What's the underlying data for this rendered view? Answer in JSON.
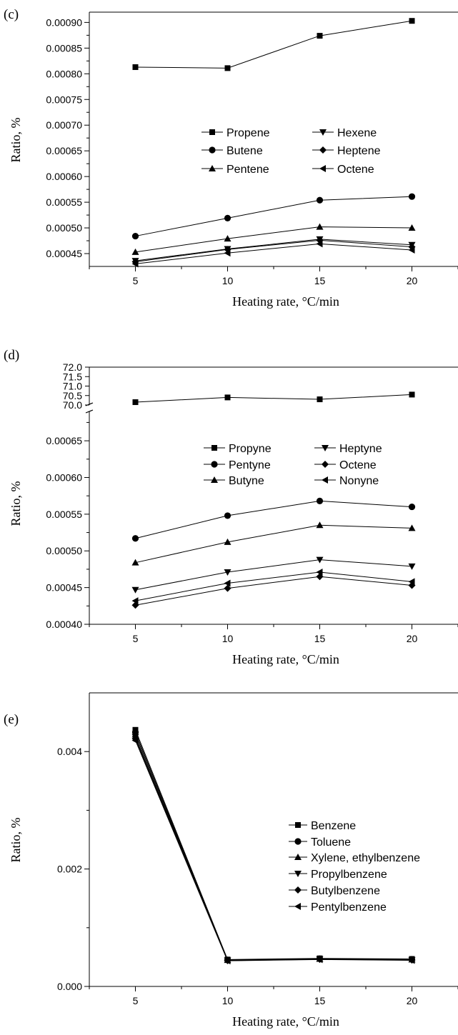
{
  "figure": {
    "panels": [
      "(c)",
      "(d)",
      "(e)"
    ]
  },
  "chart_data": [
    {
      "panel": "(c)",
      "type": "line",
      "xlabel": "Heating rate, °C/min",
      "ylabel": "Ratio, %",
      "x": [
        5,
        10,
        15,
        20
      ],
      "xticks": [
        "5",
        "10",
        "15",
        "20"
      ],
      "xlim": [
        2.5,
        22.5
      ],
      "ylim": [
        0.000425,
        0.00092
      ],
      "yticks": [
        "0.00045",
        "0.00050",
        "0.00055",
        "0.00060",
        "0.00065",
        "0.00070",
        "0.00075",
        "0.00080",
        "0.00085",
        "0.00090"
      ],
      "ytick_values": [
        0.00045,
        0.0005,
        0.00055,
        0.0006,
        0.00065,
        0.0007,
        0.00075,
        0.0008,
        0.00085,
        0.0009
      ],
      "legend_columns": 2,
      "series": [
        {
          "name": "Propene",
          "marker": "square",
          "values": [
            0.000813,
            0.000811,
            0.000874,
            0.000903
          ]
        },
        {
          "name": "Butene",
          "marker": "circle",
          "values": [
            0.000484,
            0.000519,
            0.000554,
            0.000561
          ]
        },
        {
          "name": "Pentene",
          "marker": "triangle-up",
          "values": [
            0.000453,
            0.000479,
            0.000502,
            0.0005
          ]
        },
        {
          "name": "Hexene",
          "marker": "triangle-down",
          "values": [
            0.000436,
            0.000459,
            0.000478,
            0.000467
          ]
        },
        {
          "name": "Heptene",
          "marker": "diamond",
          "values": [
            0.000434,
            0.000458,
            0.000476,
            0.000463
          ]
        },
        {
          "name": "Octene",
          "marker": "triangle-left",
          "values": [
            0.00043,
            0.000451,
            0.000469,
            0.000457
          ]
        }
      ]
    },
    {
      "panel": "(d)",
      "type": "line",
      "xlabel": "Heating rate, °C/min",
      "ylabel": "Ratio, %",
      "x": [
        5,
        10,
        15,
        20
      ],
      "xticks": [
        "5",
        "10",
        "15",
        "20"
      ],
      "xlim": [
        2.5,
        22.5
      ],
      "broken_axis": true,
      "upper_ylim": [
        70.0,
        72.0
      ],
      "upper_yticks": [
        "72.0",
        "71.5",
        "71.0",
        "70.5",
        "70.0"
      ],
      "upper_ytick_values": [
        72.0,
        71.5,
        71.0,
        70.5,
        70.0
      ],
      "lower_ylim": [
        0.0004,
        0.00069
      ],
      "lower_yticks": [
        "0.00040",
        "0.00045",
        "0.00050",
        "0.00055",
        "0.00060",
        "0.00065"
      ],
      "lower_ytick_values": [
        0.0004,
        0.00045,
        0.0005,
        0.00055,
        0.0006,
        0.00065
      ],
      "legend_columns": 2,
      "series": [
        {
          "name": "Propyne",
          "marker": "square",
          "axis": "upper",
          "values": [
            70.15,
            70.4,
            70.3,
            70.55
          ]
        },
        {
          "name": "Pentyne",
          "marker": "circle",
          "axis": "lower",
          "values": [
            0.000517,
            0.000548,
            0.000568,
            0.00056
          ]
        },
        {
          "name": "Butyne",
          "marker": "triangle-up",
          "axis": "lower",
          "values": [
            0.000484,
            0.000512,
            0.000535,
            0.000531
          ]
        },
        {
          "name": "Heptyne",
          "marker": "triangle-down",
          "axis": "lower",
          "values": [
            0.000447,
            0.000471,
            0.000488,
            0.000479
          ]
        },
        {
          "name": "Octene",
          "marker": "diamond",
          "axis": "lower",
          "values": [
            0.000426,
            0.000449,
            0.000465,
            0.000453
          ]
        },
        {
          "name": "Nonyne",
          "marker": "triangle-left",
          "axis": "lower",
          "values": [
            0.000432,
            0.000456,
            0.000471,
            0.000458
          ]
        }
      ]
    },
    {
      "panel": "(e)",
      "type": "line",
      "xlabel": "Heating rate, °C/min",
      "ylabel": "Ratio, %",
      "x": [
        5,
        10,
        15,
        20
      ],
      "xticks": [
        "5",
        "10",
        "15",
        "20"
      ],
      "xlim": [
        2.5,
        22.5
      ],
      "ylim": [
        0.0,
        0.005
      ],
      "yticks": [
        "0.000",
        "0.002",
        "0.004"
      ],
      "ytick_values": [
        0.0,
        0.002,
        0.004
      ],
      "legend_columns": 1,
      "series": [
        {
          "name": "Benzene",
          "marker": "square",
          "values": [
            0.00437,
            0.000458,
            0.000478,
            0.000468
          ]
        },
        {
          "name": "Toluene",
          "marker": "circle",
          "values": [
            0.00433,
            0.000452,
            0.000472,
            0.000462
          ]
        },
        {
          "name": "Xylene, ethylbenzene",
          "marker": "triangle-up",
          "values": [
            0.00429,
            0.000448,
            0.000468,
            0.000458
          ]
        },
        {
          "name": "Propylbenzene",
          "marker": "triangle-down",
          "values": [
            0.00425,
            0.000444,
            0.000465,
            0.000452
          ]
        },
        {
          "name": "Butylbenzene",
          "marker": "diamond",
          "values": [
            0.00422,
            0.00044,
            0.000461,
            0.000448
          ]
        },
        {
          "name": "Pentylbenzene",
          "marker": "triangle-left",
          "values": [
            0.00419,
            0.000436,
            0.000458,
            0.000444
          ]
        }
      ]
    }
  ]
}
